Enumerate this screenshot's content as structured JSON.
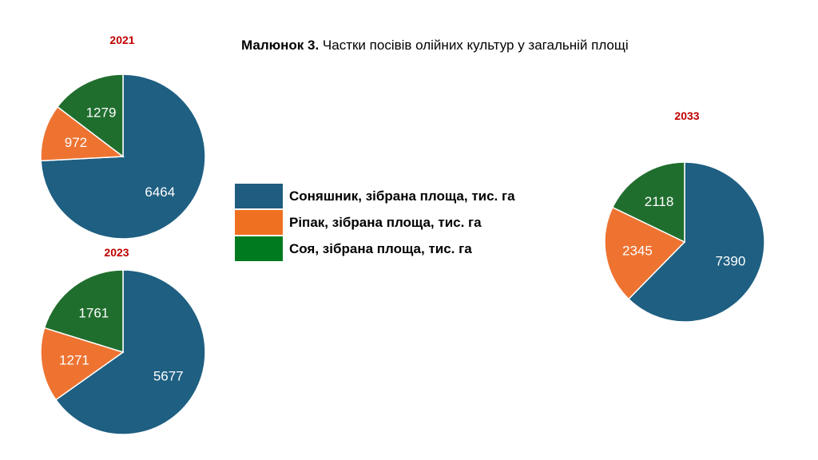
{
  "title": {
    "bold": "Малюнок 3.",
    "text": " Частки посівів олійних культур у загальній площі"
  },
  "legend": [
    {
      "label": "Соняшник, зібрана площа, тис. га",
      "color": "#1f5c80"
    },
    {
      "label": "Ріпак, зібрана площа, тис. га",
      "color": "#f07022"
    },
    {
      "label": "Соя, зібрана площа, тис. га",
      "color": "#007a1f"
    }
  ],
  "chart_data": [
    {
      "type": "pie",
      "title": "2021",
      "categories": [
        "Соняшник, зібрана площа, тис. га",
        "Ріпак, зібрана площа, тис. га",
        "Соя, зібрана площа, тис. га"
      ],
      "values": [
        6464,
        972,
        1279
      ],
      "colors": [
        "#1e5f82",
        "#ee7331",
        "#206e2e"
      ]
    },
    {
      "type": "pie",
      "title": "2023",
      "categories": [
        "Соняшник, зібрана площа, тис. га",
        "Ріпак, зібрана площа, тис. га",
        "Соя, зібрана площа, тис. га"
      ],
      "values": [
        5677,
        1271,
        1761
      ],
      "colors": [
        "#1e5f82",
        "#ee7331",
        "#206e2e"
      ]
    },
    {
      "type": "pie",
      "title": "2033",
      "categories": [
        "Соняшник, зібрана площа, тис. га",
        "Ріпак, зібрана площа, тис. га",
        "Соя, зібрана площа, тис. га"
      ],
      "values": [
        7390,
        2345,
        2118
      ],
      "colors": [
        "#1e5f82",
        "#ee7331",
        "#206e2e"
      ]
    }
  ]
}
